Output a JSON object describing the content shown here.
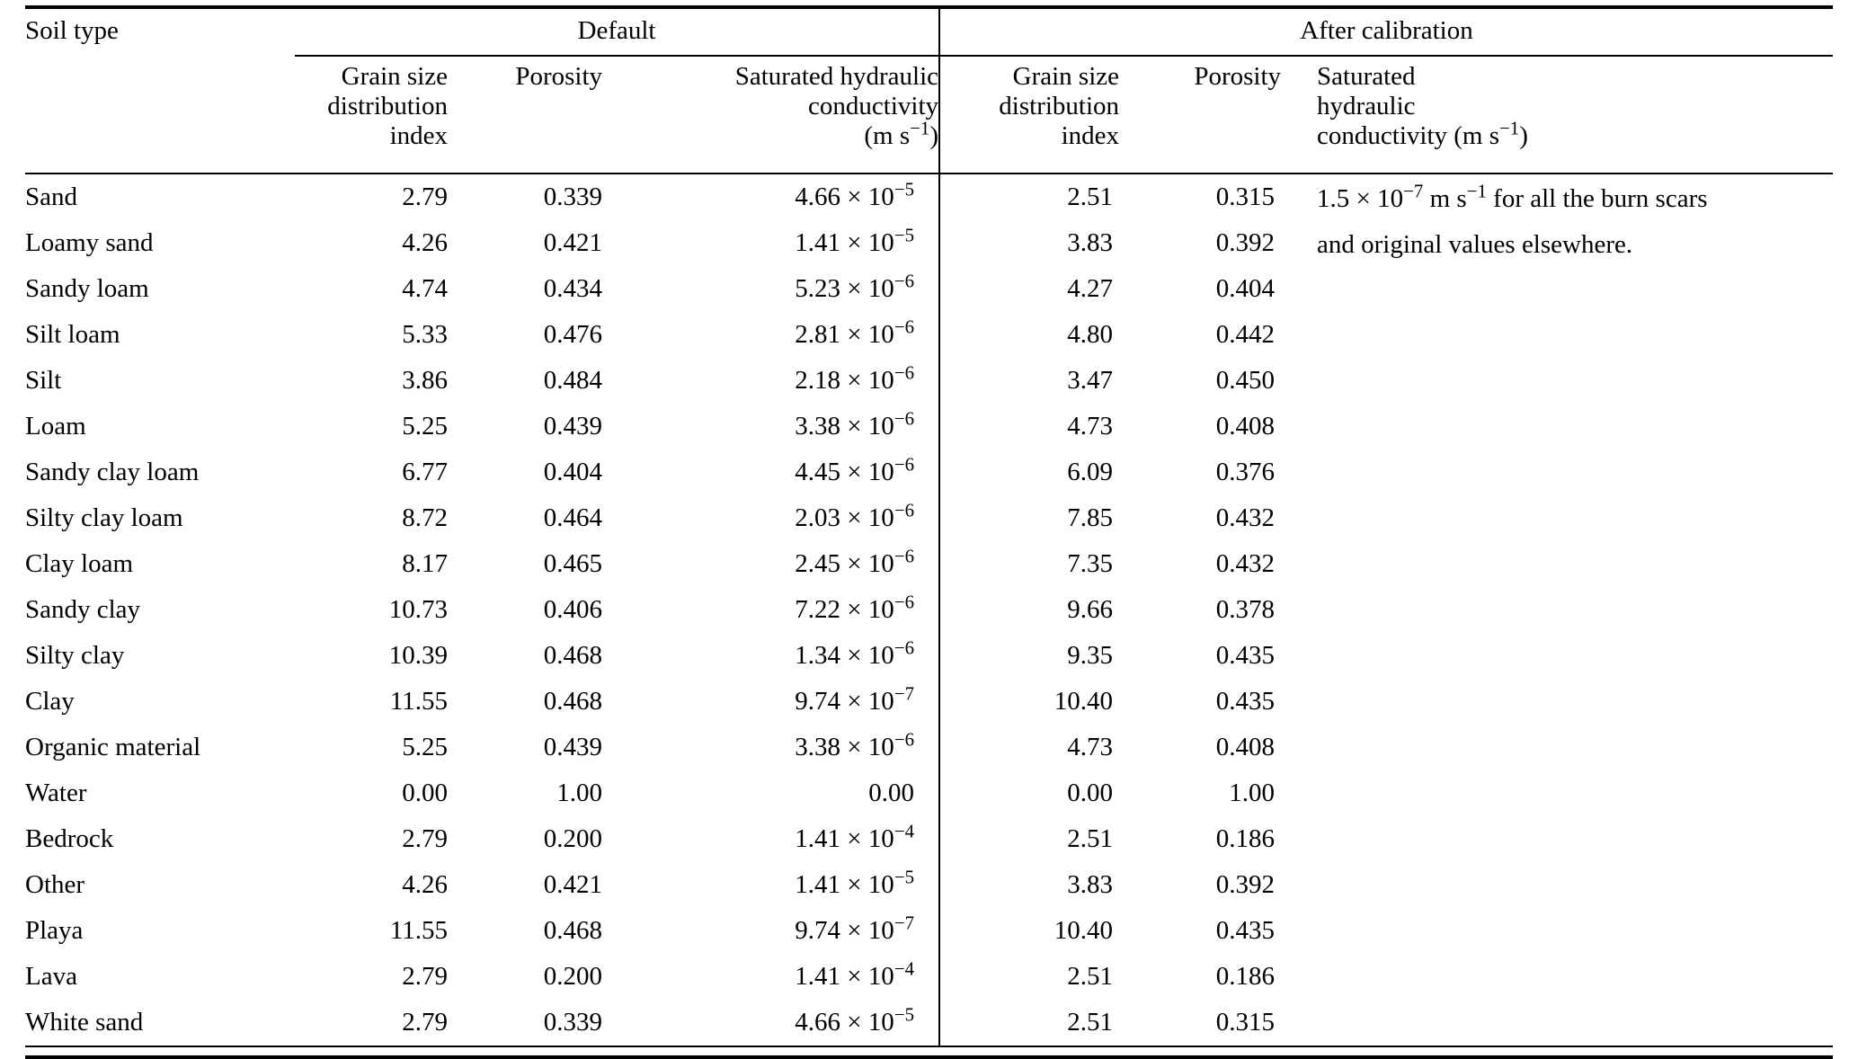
{
  "page": {
    "background": "#ffffff",
    "text_color": "#000000"
  },
  "table": {
    "header": {
      "soil_type": "Soil type",
      "groups": [
        {
          "label": "Default"
        },
        {
          "label": "After calibration"
        }
      ],
      "subheaders": {
        "default_grain": [
          "Grain size",
          "distribution",
          "index"
        ],
        "default_porosity": "Porosity",
        "default_ksat": [
          "Saturated hydraulic",
          "conductivity",
          "(m s^{−1})"
        ],
        "calib_grain": [
          "Grain size",
          "distribution",
          "index"
        ],
        "calib_porosity": "Porosity",
        "calib_ksat": [
          "Saturated",
          "hydraulic",
          "conductivity (m s^{−1})"
        ]
      }
    },
    "calibration_note": [
      "1.5 × 10^{−7} m s^{−1} for all the burn scars",
      "and original values elsewhere."
    ],
    "rows": [
      {
        "soil": "Sand",
        "d_grain": "2.79",
        "d_por": "0.339",
        "d_ksat": "4.66 × 10^{−5}",
        "c_grain": "2.51",
        "c_por": "0.315"
      },
      {
        "soil": "Loamy sand",
        "d_grain": "4.26",
        "d_por": "0.421",
        "d_ksat": "1.41 × 10^{−5}",
        "c_grain": "3.83",
        "c_por": "0.392"
      },
      {
        "soil": "Sandy loam",
        "d_grain": "4.74",
        "d_por": "0.434",
        "d_ksat": "5.23 × 10^{−6}",
        "c_grain": "4.27",
        "c_por": "0.404"
      },
      {
        "soil": "Silt loam",
        "d_grain": "5.33",
        "d_por": "0.476",
        "d_ksat": "2.81 × 10^{−6}",
        "c_grain": "4.80",
        "c_por": "0.442"
      },
      {
        "soil": "Silt",
        "d_grain": "3.86",
        "d_por": "0.484",
        "d_ksat": "2.18 × 10^{−6}",
        "c_grain": "3.47",
        "c_por": "0.450"
      },
      {
        "soil": "Loam",
        "d_grain": "5.25",
        "d_por": "0.439",
        "d_ksat": "3.38 × 10^{−6}",
        "c_grain": "4.73",
        "c_por": "0.408"
      },
      {
        "soil": "Sandy clay loam",
        "d_grain": "6.77",
        "d_por": "0.404",
        "d_ksat": "4.45 × 10^{−6}",
        "c_grain": "6.09",
        "c_por": "0.376"
      },
      {
        "soil": "Silty clay loam",
        "d_grain": "8.72",
        "d_por": "0.464",
        "d_ksat": "2.03 × 10^{−6}",
        "c_grain": "7.85",
        "c_por": "0.432"
      },
      {
        "soil": "Clay loam",
        "d_grain": "8.17",
        "d_por": "0.465",
        "d_ksat": "2.45 × 10^{−6}",
        "c_grain": "7.35",
        "c_por": "0.432"
      },
      {
        "soil": "Sandy clay",
        "d_grain": "10.73",
        "d_por": "0.406",
        "d_ksat": "7.22 × 10^{−6}",
        "c_grain": "9.66",
        "c_por": "0.378"
      },
      {
        "soil": "Silty clay",
        "d_grain": "10.39",
        "d_por": "0.468",
        "d_ksat": "1.34 × 10^{−6}",
        "c_grain": "9.35",
        "c_por": "0.435"
      },
      {
        "soil": "Clay",
        "d_grain": "11.55",
        "d_por": "0.468",
        "d_ksat": "9.74 × 10^{−7}",
        "c_grain": "10.40",
        "c_por": "0.435"
      },
      {
        "soil": "Organic material",
        "d_grain": "5.25",
        "d_por": "0.439",
        "d_ksat": "3.38 × 10^{−6}",
        "c_grain": "4.73",
        "c_por": "0.408"
      },
      {
        "soil": "Water",
        "d_grain": "0.00",
        "d_por": "1.00",
        "d_ksat": "0.00",
        "c_grain": "0.00",
        "c_por": "1.00"
      },
      {
        "soil": "Bedrock",
        "d_grain": "2.79",
        "d_por": "0.200",
        "d_ksat": "1.41 × 10^{−4}",
        "c_grain": "2.51",
        "c_por": "0.186"
      },
      {
        "soil": "Other",
        "d_grain": "4.26",
        "d_por": "0.421",
        "d_ksat": "1.41 × 10^{−5}",
        "c_grain": "3.83",
        "c_por": "0.392"
      },
      {
        "soil": "Playa",
        "d_grain": "11.55",
        "d_por": "0.468",
        "d_ksat": "9.74 × 10^{−7}",
        "c_grain": "10.40",
        "c_por": "0.435"
      },
      {
        "soil": "Lava",
        "d_grain": "2.79",
        "d_por": "0.200",
        "d_ksat": "1.41 × 10^{−4}",
        "c_grain": "2.51",
        "c_por": "0.186"
      },
      {
        "soil": "White sand",
        "d_grain": "2.79",
        "d_por": "0.339",
        "d_ksat": "4.66 × 10^{−5}",
        "c_grain": "2.51",
        "c_por": "0.315"
      }
    ]
  }
}
